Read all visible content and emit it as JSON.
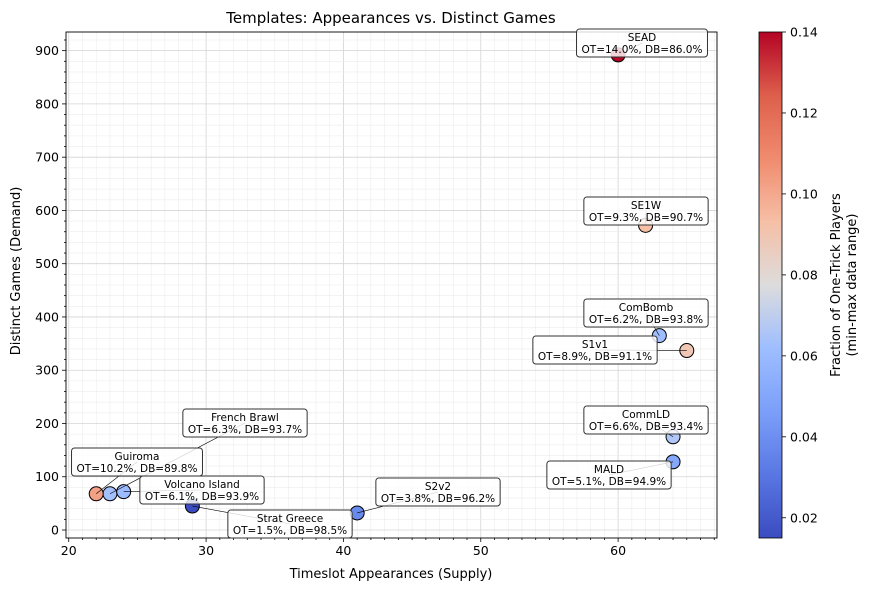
{
  "chart_data": {
    "type": "scatter",
    "title": "Templates: Appearances vs. Distinct Games",
    "xlabel": "Timeslot Appearances (Supply)",
    "ylabel": "Distinct Games (Demand)",
    "xlim": [
      19.8,
      67.2
    ],
    "ylim": [
      -15,
      935
    ],
    "xticks": [
      20,
      30,
      40,
      50,
      60
    ],
    "yticks": [
      0,
      100,
      200,
      300,
      400,
      500,
      600,
      700,
      800,
      900
    ],
    "grid": true,
    "colorbar": {
      "label_line1": "Fraction of One-Trick Players",
      "label_line2": "(min-max data range)",
      "colormap": "coolwarm",
      "min": 0.015,
      "max": 0.14,
      "ticks": [
        0.02,
        0.04,
        0.06,
        0.08,
        0.1,
        0.12,
        0.14
      ],
      "tick_labels": [
        "0.02",
        "0.04",
        "0.06",
        "0.08",
        "0.10",
        "0.12",
        "0.14"
      ]
    },
    "points": [
      {
        "name": "SEAD",
        "x": 60,
        "y": 892,
        "ot": 0.14,
        "line2": "OT=14.0%, DB=86.0%"
      },
      {
        "name": "SE1W",
        "x": 62,
        "y": 572,
        "ot": 0.093,
        "line2": "OT=9.3%, DB=90.7%"
      },
      {
        "name": "ComBomb",
        "x": 63,
        "y": 365,
        "ot": 0.062,
        "line2": "OT=6.2%, DB=93.8%"
      },
      {
        "name": "S1v1",
        "x": 65,
        "y": 337,
        "ot": 0.089,
        "line2": "OT=8.9%, DB=91.1%"
      },
      {
        "name": "CommLD",
        "x": 64,
        "y": 175,
        "ot": 0.066,
        "line2": "OT=6.6%, DB=93.4%"
      },
      {
        "name": "MALD",
        "x": 64,
        "y": 128,
        "ot": 0.051,
        "line2": "OT=5.1%, DB=94.9%"
      },
      {
        "name": "French Brawl",
        "x": 23,
        "y": 68,
        "ot": 0.063,
        "line2": "OT=6.3%, DB=93.7%"
      },
      {
        "name": "Guiroma",
        "x": 22,
        "y": 68,
        "ot": 0.102,
        "line2": "OT=10.2%, DB=89.8%"
      },
      {
        "name": "Volcano Island",
        "x": 24,
        "y": 72,
        "ot": 0.061,
        "line2": "OT=6.1%, DB=93.9%"
      },
      {
        "name": "Strat Greece",
        "x": 29,
        "y": 45,
        "ot": 0.015,
        "line2": "OT=1.5%, DB=98.5%"
      },
      {
        "name": "S2v2",
        "x": 41,
        "y": 32,
        "ot": 0.038,
        "line2": "OT=3.8%, DB=96.2%"
      }
    ]
  }
}
